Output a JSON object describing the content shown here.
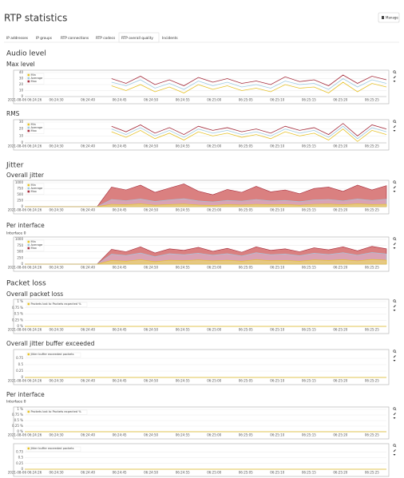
{
  "header": {
    "title": "RTP statistics",
    "button": "Manage"
  },
  "tabs": [
    "IP addresses",
    "IP groups",
    "RTP connections",
    "RTP codecs",
    "RTP overall quality",
    "Incidents"
  ],
  "headings": {
    "audio": "Audio level",
    "jitter": "Jitter",
    "packet_loss": "Packet loss"
  },
  "chart_data": [
    {
      "type": "line",
      "title": "Max level",
      "xtick_labels": [
        "2021-08-06 06:24:26",
        "06:24:30",
        "06:24:40",
        "06:24:45",
        "06:24:50",
        "06:24:55",
        "06:25:00",
        "06:25:05",
        "06:25:10",
        "06:25:15",
        "06:25:20",
        "06:25:25"
      ],
      "ylim": [
        0,
        40
      ],
      "yticks": [
        0,
        10,
        20,
        30,
        40
      ],
      "grid": true,
      "series": [
        {
          "name": "Min",
          "color": "#e6c229",
          "values": [
            null,
            null,
            null,
            null,
            null,
            null,
            18,
            10,
            20,
            8,
            16,
            6,
            20,
            12,
            18,
            10,
            14,
            8,
            20,
            14,
            16,
            6,
            24,
            8,
            22,
            16
          ]
        },
        {
          "name": "Average",
          "color": "#9ecae1",
          "values": [
            null,
            null,
            null,
            null,
            null,
            null,
            24,
            18,
            28,
            14,
            22,
            12,
            26,
            18,
            24,
            16,
            20,
            14,
            26,
            20,
            22,
            12,
            30,
            16,
            28,
            22
          ]
        },
        {
          "name": "Max",
          "color": "#a52a3a",
          "values": [
            null,
            null,
            null,
            null,
            null,
            null,
            30,
            22,
            34,
            20,
            28,
            18,
            32,
            24,
            30,
            22,
            26,
            20,
            33,
            25,
            28,
            18,
            36,
            22,
            34,
            28
          ]
        }
      ]
    },
    {
      "type": "line",
      "title": "RMS",
      "xtick_labels": [
        "2021-08-06 06:24:26",
        "06:24:30",
        "06:24:40",
        "06:24:45",
        "06:24:50",
        "06:24:55",
        "06:25:00",
        "06:25:05",
        "06:25:10",
        "06:25:15",
        "06:25:20",
        "06:25:25"
      ],
      "ylim": [
        0,
        30
      ],
      "yticks": [
        0,
        10,
        20,
        30
      ],
      "grid": true,
      "series": [
        {
          "name": "Min",
          "color": "#e6c229",
          "values": [
            null,
            null,
            null,
            null,
            null,
            null,
            16,
            8,
            18,
            6,
            14,
            4,
            16,
            10,
            14,
            8,
            12,
            6,
            16,
            10,
            14,
            4,
            20,
            2,
            18,
            12
          ]
        },
        {
          "name": "Average",
          "color": "#9ecae1",
          "values": [
            null,
            null,
            null,
            null,
            null,
            null,
            20,
            12,
            22,
            10,
            18,
            8,
            20,
            14,
            18,
            12,
            16,
            10,
            20,
            14,
            18,
            8,
            24,
            6,
            22,
            16
          ]
        },
        {
          "name": "Max",
          "color": "#a52a3a",
          "values": [
            null,
            null,
            null,
            null,
            null,
            null,
            24,
            16,
            26,
            14,
            22,
            12,
            24,
            18,
            22,
            16,
            20,
            14,
            24,
            18,
            22,
            12,
            28,
            10,
            26,
            20
          ]
        }
      ]
    },
    {
      "type": "area",
      "title": "Overall jitter",
      "xtick_labels": [
        "2021-08-06 06:24:26",
        "06:24:30",
        "06:24:40",
        "06:24:45",
        "06:24:50",
        "06:24:55",
        "06:25:00",
        "06:25:05",
        "06:25:10",
        "06:25:15",
        "06:25:20",
        "06:25:25"
      ],
      "ylim": [
        0,
        1000
      ],
      "yticks": [
        0,
        250,
        500,
        750,
        1000
      ],
      "grid": true,
      "series": [
        {
          "name": "Min",
          "color": "#e6c229",
          "values": [
            0,
            0,
            0,
            0,
            0,
            0,
            100,
            80,
            120,
            60,
            90,
            110,
            70,
            50,
            90,
            70,
            100,
            80,
            90,
            60,
            100,
            110,
            80,
            120,
            90,
            100
          ]
        },
        {
          "name": "Average",
          "color": "#9ecae1",
          "values": [
            0,
            0,
            0,
            0,
            0,
            0,
            300,
            250,
            320,
            220,
            280,
            330,
            240,
            200,
            260,
            230,
            300,
            240,
            260,
            210,
            280,
            300,
            240,
            320,
            260,
            310
          ]
        },
        {
          "name": "Max",
          "color": "#a52a3a",
          "values": [
            0,
            0,
            0,
            0,
            0,
            0,
            820,
            700,
            900,
            600,
            780,
            950,
            650,
            500,
            720,
            600,
            850,
            620,
            700,
            540,
            760,
            820,
            640,
            900,
            700,
            880
          ]
        }
      ]
    },
    {
      "type": "area",
      "title": "Per interface",
      "subtitle": "Interface 0",
      "xtick_labels": [
        "2021-08-06 06:24:26",
        "06:24:30",
        "06:24:40",
        "06:24:45",
        "06:24:50",
        "06:24:55",
        "06:25:00",
        "06:25:05",
        "06:25:10",
        "06:25:15",
        "06:25:20",
        "06:25:25"
      ],
      "ylim": [
        0,
        1000
      ],
      "yticks": [
        0,
        250,
        500,
        750,
        1000
      ],
      "grid": true,
      "series": [
        {
          "name": "Min",
          "color": "#e6c229",
          "values": [
            0,
            0,
            0,
            0,
            0,
            0,
            150,
            120,
            180,
            100,
            160,
            140,
            170,
            130,
            160,
            120,
            180,
            140,
            150,
            120,
            170,
            150,
            180,
            130,
            190,
            160
          ]
        },
        {
          "name": "Average",
          "color": "#9ecae1",
          "values": [
            0,
            0,
            0,
            0,
            0,
            0,
            400,
            350,
            450,
            300,
            420,
            380,
            440,
            360,
            420,
            330,
            460,
            380,
            410,
            340,
            440,
            390,
            460,
            360,
            470,
            410
          ]
        },
        {
          "name": "Max",
          "color": "#a52a3a",
          "values": [
            0,
            0,
            0,
            0,
            0,
            0,
            600,
            500,
            700,
            450,
            620,
            560,
            680,
            520,
            640,
            480,
            700,
            560,
            620,
            500,
            660,
            580,
            700,
            540,
            720,
            620
          ]
        }
      ]
    },
    {
      "type": "line",
      "title": "Overall packet loss",
      "xtick_labels": [
        "2021-08-06 06:24:26",
        "06:24:30",
        "06:24:40",
        "06:24:45",
        "06:24:50",
        "06:24:55",
        "06:25:00",
        "06:25:05",
        "06:25:10",
        "06:25:15",
        "06:25:20",
        "06:25:25"
      ],
      "ylim": [
        0,
        1
      ],
      "yticks": [
        {
          "value": 0,
          "label": "0 %"
        },
        {
          "value": 0.25,
          "label": "0.25 %"
        },
        {
          "value": 0.5,
          "label": "0.5 %"
        },
        {
          "value": 0.75,
          "label": "0.75 %"
        },
        {
          "value": 1,
          "label": "1 %"
        }
      ],
      "grid": true,
      "series": [
        {
          "name": "Packets lost to Packets expected %",
          "color": "#e6c229",
          "values": [
            0,
            0,
            0,
            0,
            0,
            0,
            0,
            0,
            0,
            0,
            0,
            0,
            0,
            0,
            0,
            0,
            0,
            0,
            0,
            0,
            0,
            0,
            0,
            0,
            0,
            0
          ]
        }
      ]
    },
    {
      "type": "line",
      "title": "Overall jitter buffer exceeded",
      "xtick_labels": [
        "2021-08-06 06:24:26",
        "06:24:30",
        "06:24:40",
        "06:24:45",
        "06:24:50",
        "06:24:55",
        "06:25:00",
        "06:25:05",
        "06:25:10",
        "06:25:15",
        "06:25:20",
        "06:25:25"
      ],
      "ylim": [
        0,
        1
      ],
      "yticks": [
        0,
        0.25,
        0.5,
        0.75
      ],
      "grid": true,
      "series": [
        {
          "name": "Jitter buffer exceeded packets",
          "color": "#e6c229",
          "values": [
            0,
            0,
            0,
            0,
            0,
            0,
            0,
            0,
            0,
            0,
            0,
            0,
            0,
            0,
            0,
            0,
            0,
            0,
            0,
            0,
            0,
            0,
            0,
            0,
            0,
            0
          ]
        }
      ]
    },
    {
      "type": "line",
      "title": "Per interface",
      "subtitle": "Interface 0",
      "xtick_labels": [
        "2021-08-06 06:24:26",
        "06:24:30",
        "06:24:40",
        "06:24:45",
        "06:24:50",
        "06:24:55",
        "06:25:00",
        "06:25:05",
        "06:25:10",
        "06:25:15",
        "06:25:20",
        "06:25:25"
      ],
      "ylim": [
        0,
        1
      ],
      "yticks": [
        {
          "value": 0,
          "label": "0 %"
        },
        {
          "value": 0.25,
          "label": "0.25 %"
        },
        {
          "value": 0.5,
          "label": "0.5 %"
        },
        {
          "value": 0.75,
          "label": "0.75 %"
        },
        {
          "value": 1,
          "label": "1 %"
        }
      ],
      "grid": true,
      "series": [
        {
          "name": "Packets lost to Packets expected %",
          "color": "#e6c229",
          "values": [
            0,
            0,
            0,
            0,
            0,
            0,
            0,
            0,
            0,
            0,
            0,
            0,
            0,
            0,
            0,
            0,
            0,
            0,
            0,
            0,
            0,
            0,
            0,
            0,
            0,
            0
          ]
        }
      ]
    },
    {
      "type": "line",
      "title": "",
      "xtick_labels": [
        "2021-08-06 06:24:26",
        "06:24:30",
        "06:24:40",
        "06:24:45",
        "06:24:50",
        "06:24:55",
        "06:25:00",
        "06:25:05",
        "06:25:10",
        "06:25:15",
        "06:25:20",
        "06:25:25"
      ],
      "ylim": [
        0,
        1
      ],
      "yticks": [
        0,
        0.25,
        0.5,
        0.75
      ],
      "grid": true,
      "series": [
        {
          "name": "Jitter buffer exceeded packets",
          "color": "#e6c229",
          "values": [
            0,
            0,
            0,
            0,
            0,
            0,
            0,
            0,
            0,
            0,
            0,
            0,
            0,
            0,
            0,
            0,
            0,
            0,
            0,
            0,
            0,
            0,
            0,
            0,
            0,
            0
          ]
        }
      ]
    }
  ]
}
